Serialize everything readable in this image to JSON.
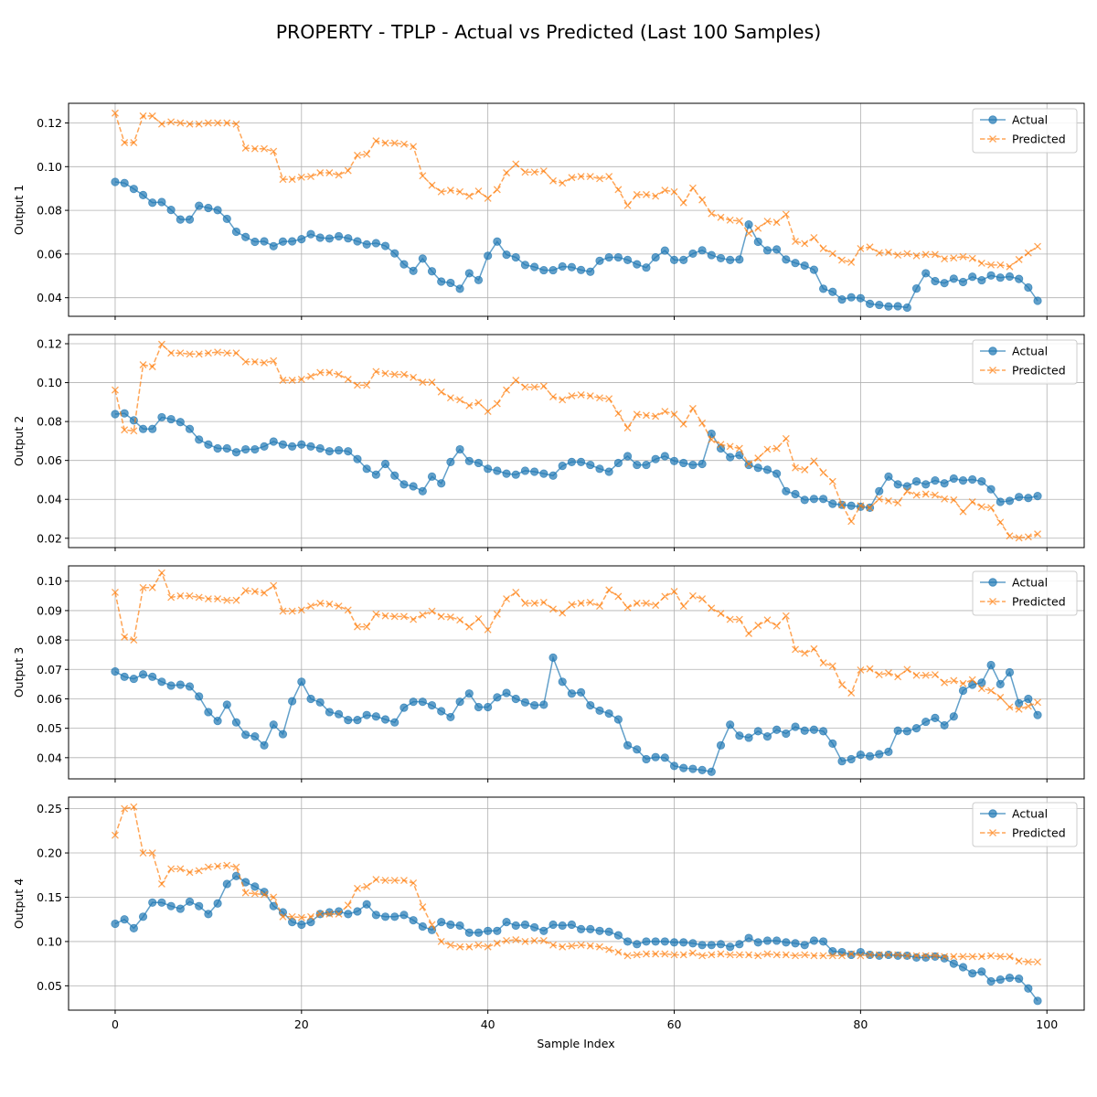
{
  "figure": {
    "title": "PROPERTY - TPLP - Actual vs Predicted (Last 100 Samples)",
    "xlabel": "Sample Index"
  },
  "colors": {
    "actual": "#1f77b4",
    "predicted": "#ff7f0e",
    "grid": "#b0b0b0",
    "axis": "#000000"
  },
  "chart_data": [
    {
      "type": "line",
      "ylabel": "Output 1",
      "xlim": [
        -5,
        104
      ],
      "ylim": [
        0.0315,
        0.129
      ],
      "yticks": [
        0.04,
        0.06,
        0.08,
        0.1,
        0.12
      ],
      "ytick_labels": [
        "0.04",
        "0.06",
        "0.08",
        "0.10",
        "0.12"
      ],
      "xticks": [
        0,
        20,
        40,
        60,
        80,
        100
      ],
      "xtick_labels": [
        "0",
        "20",
        "40",
        "60",
        "80",
        "100"
      ],
      "show_xtick_labels": false,
      "grid": true,
      "legend": "top-right",
      "series": [
        {
          "name": "Actual",
          "marker": "circle",
          "line": "solid",
          "values": [
            0.093,
            0.0925,
            0.0898,
            0.087,
            0.0835,
            0.0838,
            0.0802,
            0.0758,
            0.0758,
            0.0821,
            0.0811,
            0.0801,
            0.0761,
            0.0702,
            0.0678,
            0.0656,
            0.0658,
            0.0636,
            0.0657,
            0.0658,
            0.0668,
            0.0691,
            0.0675,
            0.0671,
            0.0681,
            0.0672,
            0.0658,
            0.0644,
            0.065,
            0.0637,
            0.0603,
            0.0553,
            0.0523,
            0.0579,
            0.0521,
            0.0474,
            0.0468,
            0.0441,
            0.0512,
            0.0481,
            0.0592,
            0.0657,
            0.0597,
            0.0585,
            0.055,
            0.0541,
            0.0526,
            0.0526,
            0.0543,
            0.054,
            0.0527,
            0.0519,
            0.0569,
            0.0585,
            0.0585,
            0.0573,
            0.0553,
            0.0538,
            0.0585,
            0.0616,
            0.0573,
            0.0573,
            0.0602,
            0.0617,
            0.0595,
            0.0581,
            0.0573,
            0.0575,
            0.0735,
            0.0656,
            0.0617,
            0.0621,
            0.0575,
            0.0559,
            0.0547,
            0.0528,
            0.0441,
            0.0427,
            0.0392,
            0.0402,
            0.0398,
            0.0372,
            0.0367,
            0.036,
            0.0361,
            0.0355,
            0.0442,
            0.0512,
            0.0476,
            0.0467,
            0.0487,
            0.0472,
            0.0496,
            0.048,
            0.0502,
            0.0492,
            0.0497,
            0.0486,
            0.0447,
            0.0386
          ]
        },
        {
          "name": "Predicted",
          "marker": "x",
          "line": "dashed",
          "values": [
            0.1245,
            0.111,
            0.111,
            0.1232,
            0.1232,
            0.1195,
            0.1205,
            0.12,
            0.1195,
            0.1195,
            0.12,
            0.12,
            0.12,
            0.1195,
            0.1085,
            0.1082,
            0.1082,
            0.107,
            0.0942,
            0.0942,
            0.0952,
            0.0955,
            0.0972,
            0.0972,
            0.0962,
            0.0982,
            0.1052,
            0.1057,
            0.1118,
            0.1108,
            0.1108,
            0.1103,
            0.1092,
            0.0958,
            0.0915,
            0.0885,
            0.0892,
            0.0885,
            0.0865,
            0.0888,
            0.0855,
            0.0895,
            0.0972,
            0.1012,
            0.0975,
            0.0975,
            0.098,
            0.0935,
            0.0925,
            0.095,
            0.0955,
            0.0955,
            0.0945,
            0.0955,
            0.0895,
            0.0822,
            0.0872,
            0.0872,
            0.0865,
            0.0892,
            0.0885,
            0.0835,
            0.0902,
            0.0848,
            0.0785,
            0.0768,
            0.0755,
            0.0752,
            0.0695,
            0.0718,
            0.075,
            0.0745,
            0.0782,
            0.0658,
            0.0648,
            0.0675,
            0.0625,
            0.0602,
            0.0572,
            0.0562,
            0.0625,
            0.0632,
            0.0605,
            0.0608,
            0.0595,
            0.0602,
            0.0592,
            0.0598,
            0.0598,
            0.0578,
            0.0582,
            0.0588,
            0.058,
            0.0558,
            0.055,
            0.055,
            0.0542,
            0.0575,
            0.0605,
            0.0635
          ]
        }
      ]
    },
    {
      "type": "line",
      "ylabel": "Output 2",
      "xlim": [
        -5,
        104
      ],
      "ylim": [
        0.0152,
        0.1247
      ],
      "yticks": [
        0.02,
        0.04,
        0.06,
        0.08,
        0.1,
        0.12
      ],
      "ytick_labels": [
        "0.02",
        "0.04",
        "0.06",
        "0.08",
        "0.10",
        "0.12"
      ],
      "xticks": [
        0,
        20,
        40,
        60,
        80,
        100
      ],
      "xtick_labels": [
        "0",
        "20",
        "40",
        "60",
        "80",
        "100"
      ],
      "show_xtick_labels": false,
      "grid": true,
      "legend": "top-right",
      "series": [
        {
          "name": "Actual",
          "marker": "circle",
          "line": "solid",
          "values": [
            0.0838,
            0.0842,
            0.0806,
            0.0762,
            0.0762,
            0.0822,
            0.0812,
            0.0797,
            0.0762,
            0.0707,
            0.0682,
            0.0662,
            0.0662,
            0.0642,
            0.0657,
            0.0657,
            0.0672,
            0.0697,
            0.0682,
            0.0672,
            0.0682,
            0.0672,
            0.0662,
            0.0647,
            0.0652,
            0.0647,
            0.0607,
            0.0557,
            0.0527,
            0.0582,
            0.0522,
            0.0477,
            0.0467,
            0.0442,
            0.0517,
            0.0482,
            0.0592,
            0.0657,
            0.0597,
            0.0587,
            0.0557,
            0.0547,
            0.0532,
            0.0527,
            0.0547,
            0.0542,
            0.0532,
            0.0522,
            0.0572,
            0.0592,
            0.0592,
            0.0577,
            0.0557,
            0.0542,
            0.0587,
            0.0622,
            0.0577,
            0.0577,
            0.0607,
            0.0622,
            0.0597,
            0.0587,
            0.0577,
            0.0582,
            0.0737,
            0.0662,
            0.0617,
            0.0627,
            0.0577,
            0.0562,
            0.0552,
            0.0532,
            0.0442,
            0.0427,
            0.0397,
            0.0402,
            0.0402,
            0.0377,
            0.0372,
            0.0367,
            0.0362,
            0.0357,
            0.0442,
            0.0517,
            0.0477,
            0.0467,
            0.0492,
            0.0477,
            0.0497,
            0.0482,
            0.0507,
            0.0497,
            0.0502,
            0.0492,
            0.0452,
            0.0387,
            0.0392,
            0.0412,
            0.0407,
            0.0417
          ]
        },
        {
          "name": "Predicted",
          "marker": "x",
          "line": "dashed",
          "values": [
            0.0962,
            0.0757,
            0.0752,
            0.1092,
            0.1082,
            0.1197,
            0.1152,
            0.1152,
            0.1147,
            0.1147,
            0.1152,
            0.1157,
            0.1152,
            0.1152,
            0.1107,
            0.1107,
            0.1102,
            0.1112,
            0.1012,
            0.1012,
            0.1017,
            0.1032,
            0.1052,
            0.1052,
            0.1042,
            0.1017,
            0.0987,
            0.0987,
            0.1057,
            0.1047,
            0.1042,
            0.1042,
            0.1027,
            0.1002,
            0.1002,
            0.0952,
            0.0922,
            0.0912,
            0.0882,
            0.0897,
            0.0852,
            0.0892,
            0.0962,
            0.1012,
            0.0977,
            0.0977,
            0.0982,
            0.0927,
            0.0912,
            0.0932,
            0.0937,
            0.0932,
            0.0922,
            0.0917,
            0.0842,
            0.0767,
            0.0837,
            0.0832,
            0.0827,
            0.0852,
            0.0837,
            0.0787,
            0.0867,
            0.0792,
            0.0707,
            0.0682,
            0.0672,
            0.0662,
            0.0582,
            0.0612,
            0.0657,
            0.0662,
            0.0712,
            0.0562,
            0.0552,
            0.0597,
            0.0537,
            0.0492,
            0.0372,
            0.0287,
            0.0367,
            0.0357,
            0.0402,
            0.0392,
            0.0382,
            0.0442,
            0.0422,
            0.0427,
            0.0422,
            0.0402,
            0.0397,
            0.0337,
            0.0387,
            0.0362,
            0.0357,
            0.0282,
            0.0212,
            0.0202,
            0.0207,
            0.0222
          ]
        }
      ]
    },
    {
      "type": "line",
      "ylabel": "Output 3",
      "xlim": [
        -5,
        104
      ],
      "ylim": [
        0.0328,
        0.1052
      ],
      "yticks": [
        0.04,
        0.05,
        0.06,
        0.07,
        0.08,
        0.09,
        0.1
      ],
      "ytick_labels": [
        "0.04",
        "0.05",
        "0.06",
        "0.07",
        "0.08",
        "0.09",
        "0.10"
      ],
      "xticks": [
        0,
        20,
        40,
        60,
        80,
        100
      ],
      "xtick_labels": [
        "0",
        "20",
        "40",
        "60",
        "80",
        "100"
      ],
      "show_xtick_labels": false,
      "grid": true,
      "legend": "top-right",
      "series": [
        {
          "name": "Actual",
          "marker": "circle",
          "line": "solid",
          "values": [
            0.0693,
            0.0675,
            0.0668,
            0.0683,
            0.0675,
            0.0658,
            0.0645,
            0.0648,
            0.0642,
            0.0608,
            0.0555,
            0.0525,
            0.058,
            0.052,
            0.0478,
            0.0472,
            0.0442,
            0.0512,
            0.048,
            0.0592,
            0.0658,
            0.06,
            0.0588,
            0.0555,
            0.0548,
            0.0528,
            0.0528,
            0.0545,
            0.054,
            0.053,
            0.052,
            0.057,
            0.059,
            0.059,
            0.0578,
            0.0558,
            0.0538,
            0.059,
            0.0618,
            0.0572,
            0.0572,
            0.0605,
            0.062,
            0.06,
            0.0588,
            0.0578,
            0.058,
            0.074,
            0.0658,
            0.0618,
            0.0622,
            0.0578,
            0.056,
            0.055,
            0.053,
            0.0442,
            0.0428,
            0.0395,
            0.0402,
            0.04,
            0.0372,
            0.0365,
            0.0362,
            0.0358,
            0.0352,
            0.0442,
            0.0512,
            0.0475,
            0.0468,
            0.049,
            0.0472,
            0.0495,
            0.0482,
            0.0505,
            0.0492,
            0.0495,
            0.049,
            0.0448,
            0.0388,
            0.0395,
            0.041,
            0.0405,
            0.0412,
            0.042,
            0.0492,
            0.049,
            0.05,
            0.0522,
            0.0535,
            0.051,
            0.054,
            0.0628,
            0.0648,
            0.0655,
            0.0715,
            0.065,
            0.069,
            0.0585,
            0.06,
            0.0545
          ]
        },
        {
          "name": "Predicted",
          "marker": "x",
          "line": "dashed",
          "values": [
            0.0962,
            0.081,
            0.08,
            0.0978,
            0.0978,
            0.1028,
            0.0945,
            0.095,
            0.095,
            0.0945,
            0.094,
            0.094,
            0.0935,
            0.0935,
            0.0968,
            0.0965,
            0.096,
            0.0985,
            0.0898,
            0.0898,
            0.0902,
            0.0915,
            0.0925,
            0.0922,
            0.0915,
            0.0902,
            0.0845,
            0.0845,
            0.0888,
            0.0882,
            0.088,
            0.088,
            0.087,
            0.0885,
            0.0898,
            0.088,
            0.0878,
            0.0868,
            0.0845,
            0.0872,
            0.0835,
            0.0888,
            0.094,
            0.0962,
            0.0925,
            0.0925,
            0.0928,
            0.0905,
            0.0892,
            0.092,
            0.0925,
            0.0928,
            0.0915,
            0.097,
            0.0948,
            0.091,
            0.0925,
            0.0925,
            0.0918,
            0.0948,
            0.0965,
            0.0915,
            0.095,
            0.094,
            0.0908,
            0.089,
            0.087,
            0.087,
            0.0822,
            0.085,
            0.0868,
            0.0848,
            0.0882,
            0.0768,
            0.0755,
            0.077,
            0.0722,
            0.0712,
            0.0648,
            0.062,
            0.0698,
            0.0702,
            0.0682,
            0.0688,
            0.0675,
            0.07,
            0.068,
            0.068,
            0.0682,
            0.0655,
            0.0662,
            0.0652,
            0.0665,
            0.0635,
            0.0628,
            0.0605,
            0.0572,
            0.0565,
            0.0575,
            0.0588
          ]
        }
      ]
    },
    {
      "type": "line",
      "ylabel": "Output 4",
      "xlim": [
        -5,
        104
      ],
      "ylim": [
        0.0225,
        0.263
      ],
      "yticks": [
        0.05,
        0.1,
        0.15,
        0.2,
        0.25
      ],
      "ytick_labels": [
        "0.05",
        "0.10",
        "0.15",
        "0.20",
        "0.25"
      ],
      "xticks": [
        0,
        20,
        40,
        60,
        80,
        100
      ],
      "xtick_labels": [
        "0",
        "20",
        "40",
        "60",
        "80",
        "100"
      ],
      "show_xtick_labels": true,
      "grid": true,
      "legend": "top-right",
      "series": [
        {
          "name": "Actual",
          "marker": "circle",
          "line": "solid",
          "values": [
            0.12,
            0.125,
            0.115,
            0.128,
            0.144,
            0.144,
            0.14,
            0.137,
            0.145,
            0.14,
            0.131,
            0.143,
            0.165,
            0.174,
            0.167,
            0.162,
            0.156,
            0.14,
            0.133,
            0.122,
            0.119,
            0.122,
            0.131,
            0.133,
            0.134,
            0.131,
            0.134,
            0.142,
            0.13,
            0.128,
            0.128,
            0.13,
            0.124,
            0.117,
            0.113,
            0.122,
            0.119,
            0.118,
            0.11,
            0.11,
            0.112,
            0.112,
            0.122,
            0.118,
            0.119,
            0.116,
            0.112,
            0.119,
            0.118,
            0.119,
            0.114,
            0.114,
            0.112,
            0.111,
            0.107,
            0.1,
            0.097,
            0.1,
            0.1,
            0.1,
            0.099,
            0.099,
            0.098,
            0.096,
            0.096,
            0.097,
            0.094,
            0.097,
            0.104,
            0.099,
            0.101,
            0.101,
            0.099,
            0.098,
            0.096,
            0.101,
            0.1,
            0.089,
            0.088,
            0.085,
            0.088,
            0.085,
            0.084,
            0.085,
            0.084,
            0.084,
            0.082,
            0.082,
            0.083,
            0.081,
            0.075,
            0.071,
            0.064,
            0.066,
            0.055,
            0.057,
            0.059,
            0.058,
            0.047,
            0.033
          ]
        },
        {
          "name": "Predicted",
          "marker": "x",
          "line": "dashed",
          "values": [
            0.22,
            0.25,
            0.252,
            0.2,
            0.2,
            0.165,
            0.182,
            0.182,
            0.178,
            0.18,
            0.184,
            0.185,
            0.186,
            0.184,
            0.155,
            0.154,
            0.153,
            0.15,
            0.128,
            0.128,
            0.127,
            0.128,
            0.131,
            0.131,
            0.131,
            0.141,
            0.16,
            0.162,
            0.17,
            0.169,
            0.169,
            0.169,
            0.166,
            0.139,
            0.119,
            0.1,
            0.096,
            0.094,
            0.094,
            0.096,
            0.094,
            0.098,
            0.101,
            0.102,
            0.1,
            0.101,
            0.101,
            0.096,
            0.094,
            0.095,
            0.096,
            0.095,
            0.094,
            0.091,
            0.088,
            0.084,
            0.085,
            0.086,
            0.086,
            0.086,
            0.085,
            0.085,
            0.087,
            0.084,
            0.085,
            0.086,
            0.085,
            0.085,
            0.085,
            0.084,
            0.086,
            0.085,
            0.085,
            0.084,
            0.085,
            0.084,
            0.084,
            0.084,
            0.084,
            0.086,
            0.084,
            0.085,
            0.085,
            0.085,
            0.085,
            0.084,
            0.084,
            0.084,
            0.084,
            0.083,
            0.083,
            0.083,
            0.083,
            0.083,
            0.084,
            0.083,
            0.083,
            0.078,
            0.077,
            0.077
          ]
        }
      ]
    }
  ]
}
